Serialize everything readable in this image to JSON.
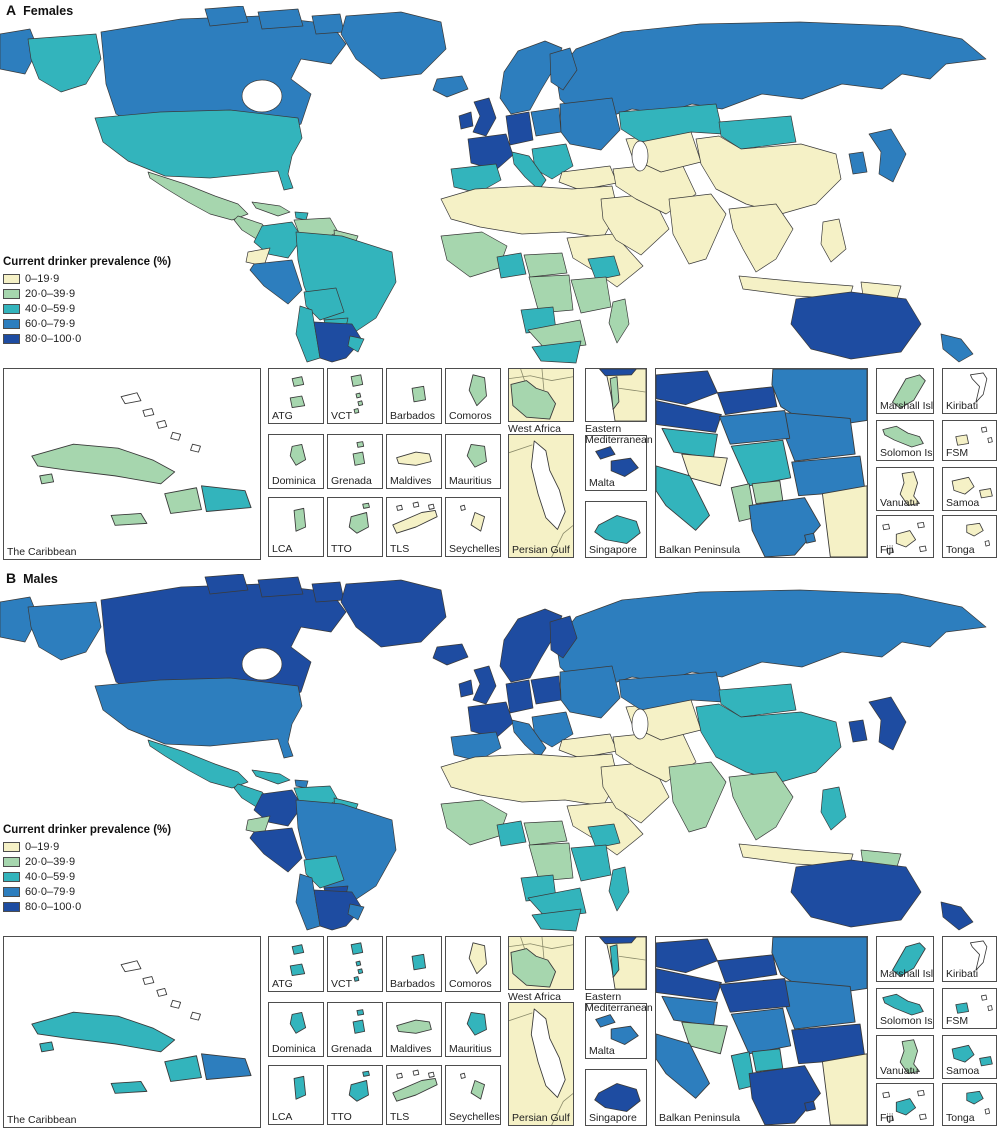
{
  "palette": {
    "b1": "#F5F1C6",
    "b2": "#A6D6AE",
    "b3": "#33B4BC",
    "b4": "#2D7EBE",
    "b5": "#1E4CA1",
    "outline": "#3a3a3a",
    "water": "#FFFFFF"
  },
  "legend": {
    "title": "Current drinker prevalence (%)",
    "items": [
      {
        "label": "0–19·9",
        "band": "b1"
      },
      {
        "label": "20·0–39·9",
        "band": "b2"
      },
      {
        "label": "40·0–59·9",
        "band": "b3"
      },
      {
        "label": "60·0–79·9",
        "band": "b4"
      },
      {
        "label": "80·0–100·0",
        "band": "b5"
      }
    ]
  },
  "labels": {
    "caribbean": "The Caribbean",
    "atg": "ATG",
    "vct": "VCT",
    "barbados": "Barbados",
    "comoros": "Comoros",
    "dominica": "Dominica",
    "grenada": "Grenada",
    "maldives": "Maldives",
    "mauritius": "Mauritius",
    "lca": "LCA",
    "tto": "TTO",
    "tls": "TLS",
    "seychelles": "Seychelles",
    "west_africa": "West Africa",
    "eastern_med_1": "Eastern",
    "eastern_med_2": "Mediterranean",
    "persian_gulf": "Persian Gulf",
    "malta": "Malta",
    "singapore": "Singapore",
    "balkan": "Balkan Peninsula",
    "marshall": "Marshall Isl",
    "kiribati": "Kiribati",
    "solomon": "Solomon Isl",
    "fsm": "FSM",
    "vanuatu": "Vanuatu",
    "samoa": "Samoa",
    "fiji": "Fiji",
    "tonga": "Tonga"
  },
  "panels": [
    {
      "letter": "A",
      "title": "Females",
      "regions": {
        "russia": "b4",
        "chukotka": "b4",
        "alaska": "b3",
        "canada": "b4",
        "greenland": "b4",
        "usa": "b3",
        "mexico": "b2",
        "camerica": "b2",
        "cuba_main": "b2",
        "hispaniola": "b3",
        "colombia": "b3",
        "venezuela": "b2",
        "guyanas": "b2",
        "ecuador": "b1",
        "peru": "b4",
        "brazil": "b3",
        "bolivia": "b3",
        "paraguay": "b3",
        "chile": "b3",
        "argentina": "b5",
        "uruguay": "b3",
        "iceland": "b4",
        "ireland": "b5",
        "uk": "b5",
        "scandinavia": "b4",
        "finland": "b4",
        "france": "b5",
        "spain": "b3",
        "germany": "b5",
        "poland": "b4",
        "easteurope": "b4",
        "balkansmain": "b3",
        "italy": "b3",
        "turkey": "b1",
        "northafrica": "b1",
        "westafrica": "b2",
        "nigeria": "b3",
        "centralafrica": "b2",
        "sudanhorn": "b1",
        "ethiopia": "b3",
        "eastafrica": "b2",
        "drc": "b2",
        "angola": "b3",
        "southernafrica": "b2",
        "southafrica": "b3",
        "madagascar": "b2",
        "arabia": "b1",
        "iran": "b1",
        "centralasia": "b1",
        "kazakhstan": "b3",
        "mongolia": "b3",
        "china": "b1",
        "india": "b1",
        "seasia": "b1",
        "indonesia": "b1",
        "philippines": "b1",
        "japan": "b4",
        "korea": "b4",
        "png": "b1",
        "australia": "b5",
        "nz": "b4"
      },
      "insets": {
        "caribbean": {
          "cuba": "b2",
          "jamaica": "b2",
          "haiti": "b2",
          "dominican": "b3"
        },
        "islands": {
          "atg": "b2",
          "vct": "b2",
          "barbados": "b2",
          "comoros": "b2",
          "dominica": "b2",
          "grenada": "b2",
          "maldives": "b1",
          "mauritius": "b2",
          "lca": "b2",
          "tto": "b2",
          "tls": "b1",
          "seychelles": "b1"
        },
        "west_africa": {
          "bg": "b1",
          "coastal": "b2"
        },
        "eastern_med": {
          "bg": "b1",
          "north": "b5",
          "israel": "b2"
        },
        "persian_gulf": {
          "bg": "b1"
        },
        "malta": {
          "band": "b5"
        },
        "singapore": {
          "band": "b3"
        },
        "balkan": {
          "ukraine": "b4",
          "czech": "b5",
          "slovakia": "b5",
          "austria": "b5",
          "hungary": "b4",
          "romania": "b4",
          "croatia": "b3",
          "bosnia": "b1",
          "serbia": "b3",
          "albania": "b2",
          "macedonia": "b2",
          "bulgaria": "b4",
          "greece": "b4",
          "turkey": "b1",
          "italy": "b3"
        },
        "pacific": {
          "marshall": "b2",
          "kiribati": null,
          "solomon": "b2",
          "fsm": "b1",
          "vanuatu": "b1",
          "samoa": "b1",
          "fiji": "b1",
          "tonga": "b1"
        }
      }
    },
    {
      "letter": "B",
      "title": "Males",
      "regions": {
        "russia": "b4",
        "chukotka": "b4",
        "alaska": "b4",
        "canada": "b5",
        "greenland": "b5",
        "usa": "b4",
        "mexico": "b3",
        "camerica": "b3",
        "cuba_main": "b3",
        "hispaniola": "b4",
        "colombia": "b5",
        "venezuela": "b3",
        "guyanas": "b3",
        "ecuador": "b2",
        "peru": "b5",
        "brazil": "b4",
        "bolivia": "b3",
        "paraguay": "b5",
        "chile": "b4",
        "argentina": "b5",
        "uruguay": "b4",
        "iceland": "b5",
        "ireland": "b5",
        "uk": "b5",
        "scandinavia": "b5",
        "finland": "b5",
        "france": "b5",
        "spain": "b4",
        "germany": "b5",
        "poland": "b5",
        "easteurope": "b4",
        "balkansmain": "b4",
        "italy": "b4",
        "turkey": "b1",
        "northafrica": "b1",
        "westafrica": "b2",
        "nigeria": "b3",
        "centralafrica": "b2",
        "sudanhorn": "b1",
        "ethiopia": "b3",
        "eastafrica": "b3",
        "drc": "b2",
        "angola": "b3",
        "southernafrica": "b3",
        "southafrica": "b3",
        "madagascar": "b3",
        "arabia": "b1",
        "iran": "b1",
        "centralasia": "b1",
        "kazakhstan": "b4",
        "mongolia": "b3",
        "china": "b3",
        "india": "b2",
        "seasia": "b2",
        "indonesia": "b1",
        "philippines": "b3",
        "japan": "b5",
        "korea": "b5",
        "png": "b2",
        "australia": "b5",
        "nz": "b5"
      },
      "insets": {
        "caribbean": {
          "cuba": "b3",
          "jamaica": "b3",
          "haiti": "b3",
          "dominican": "b4"
        },
        "islands": {
          "atg": "b3",
          "vct": "b3",
          "barbados": "b3",
          "comoros": "b1",
          "dominica": "b3",
          "grenada": "b3",
          "maldives": "b2",
          "mauritius": "b3",
          "lca": "b3",
          "tto": "b3",
          "tls": "b2",
          "seychelles": "b2"
        },
        "west_africa": {
          "bg": "b1",
          "coastal": "b2"
        },
        "eastern_med": {
          "bg": "b1",
          "north": "b5",
          "israel": "b3"
        },
        "persian_gulf": {
          "bg": "b1"
        },
        "malta": {
          "band": "b4"
        },
        "singapore": {
          "band": "b5"
        },
        "balkan": {
          "ukraine": "b4",
          "czech": "b5",
          "slovakia": "b5",
          "austria": "b5",
          "hungary": "b5",
          "romania": "b4",
          "croatia": "b4",
          "bosnia": "b2",
          "serbia": "b4",
          "albania": "b3",
          "macedonia": "b3",
          "bulgaria": "b5",
          "greece": "b5",
          "turkey": "b1",
          "italy": "b4"
        },
        "pacific": {
          "marshall": "b3",
          "kiribati": null,
          "solomon": "b3",
          "fsm": "b3",
          "vanuatu": "b2",
          "samoa": "b3",
          "fiji": "b3",
          "tonga": "b3"
        }
      }
    }
  ]
}
